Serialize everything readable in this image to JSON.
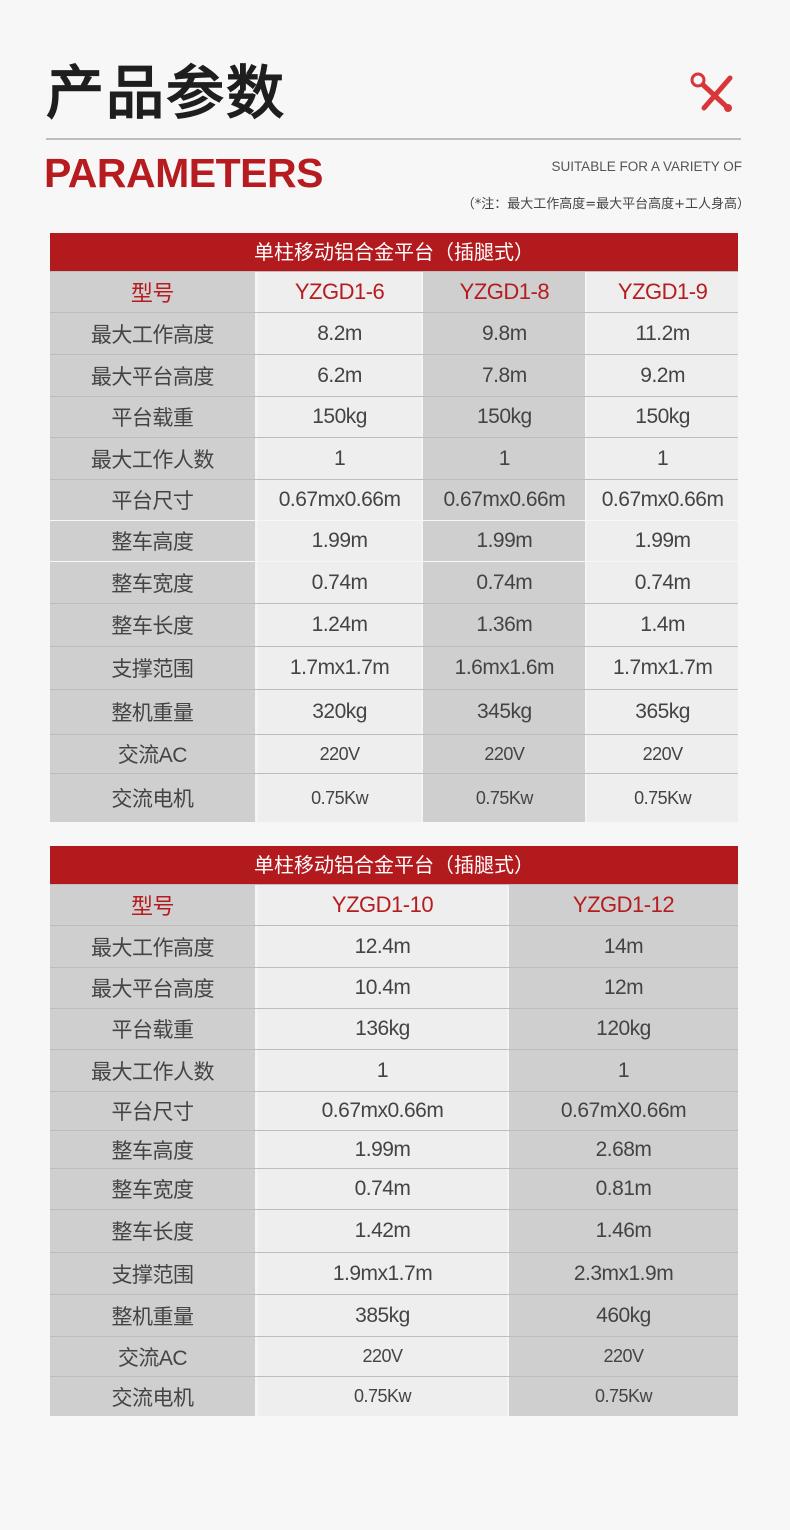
{
  "header": {
    "title_cn": "产品参数",
    "title_en": "PARAMETERS",
    "subtitle": "SUITABLE FOR A VARIETY OF",
    "note": "（*注：最大工作高度=最大平台高度+工人身高）",
    "icon": "tools-icon",
    "accent_color": "#b61c1f"
  },
  "tables": [
    {
      "title": "单柱移动铝合金平台（插腿式）",
      "rows": [
        {
          "label": "型号",
          "values": [
            "YZGD1-6",
            "YZGD1-8",
            "YZGD1-9"
          ]
        },
        {
          "label": "最大工作高度",
          "values": [
            "8.2m",
            "9.8m",
            "11.2m"
          ]
        },
        {
          "label": "最大平台高度",
          "values": [
            "6.2m",
            "7.8m",
            "9.2m"
          ]
        },
        {
          "label": "平台载重",
          "values": [
            "150kg",
            "150kg",
            "150kg"
          ]
        },
        {
          "label": "最大工作人数",
          "values": [
            "1",
            "1",
            "1"
          ]
        },
        {
          "label": "平台尺寸",
          "values": [
            "0.67mx0.66m",
            "0.67mx0.66m",
            "0.67mx0.66m"
          ]
        },
        {
          "label": "整车高度",
          "values": [
            "1.99m",
            "1.99m",
            "1.99m"
          ]
        },
        {
          "label": "整车宽度",
          "values": [
            "0.74m",
            "0.74m",
            "0.74m"
          ]
        },
        {
          "label": "整车长度",
          "values": [
            "1.24m",
            "1.36m",
            "1.4m"
          ]
        },
        {
          "label": "支撑范围",
          "values": [
            "1.7mx1.7m",
            "1.6mx1.6m",
            "1.7mx1.7m"
          ]
        },
        {
          "label": "整机重量",
          "values": [
            "320kg",
            "345kg",
            "365kg"
          ]
        },
        {
          "label": "交流AC",
          "values": [
            "220V",
            "220V",
            "220V"
          ]
        },
        {
          "label": "交流电机",
          "values": [
            "0.75Kw",
            "0.75Kw",
            "0.75Kw"
          ]
        }
      ]
    },
    {
      "title": "单柱移动铝合金平台（插腿式）",
      "rows": [
        {
          "label": "型号",
          "values": [
            "YZGD1-10",
            "YZGD1-12"
          ]
        },
        {
          "label": "最大工作高度",
          "values": [
            "12.4m",
            "14m"
          ]
        },
        {
          "label": "最大平台高度",
          "values": [
            "10.4m",
            "12m"
          ]
        },
        {
          "label": "平台载重",
          "values": [
            "136kg",
            "120kg"
          ]
        },
        {
          "label": "最大工作人数",
          "values": [
            "1",
            "1"
          ]
        },
        {
          "label": "平台尺寸",
          "values": [
            "0.67mx0.66m",
            "0.67mX0.66m"
          ]
        },
        {
          "label": "整车高度",
          "values": [
            "1.99m",
            "2.68m"
          ]
        },
        {
          "label": "整车宽度",
          "values": [
            "0.74m",
            "0.81m"
          ]
        },
        {
          "label": "整车长度",
          "values": [
            "1.42m",
            "1.46m"
          ]
        },
        {
          "label": "支撑范围",
          "values": [
            "1.9mx1.7m",
            "2.3mx1.9m"
          ]
        },
        {
          "label": "整机重量",
          "values": [
            "385kg",
            "460kg"
          ]
        },
        {
          "label": "交流AC",
          "values": [
            "220V",
            "220V"
          ]
        },
        {
          "label": "交流电机",
          "values": [
            "0.75Kw",
            "0.75Kw"
          ]
        }
      ]
    }
  ]
}
